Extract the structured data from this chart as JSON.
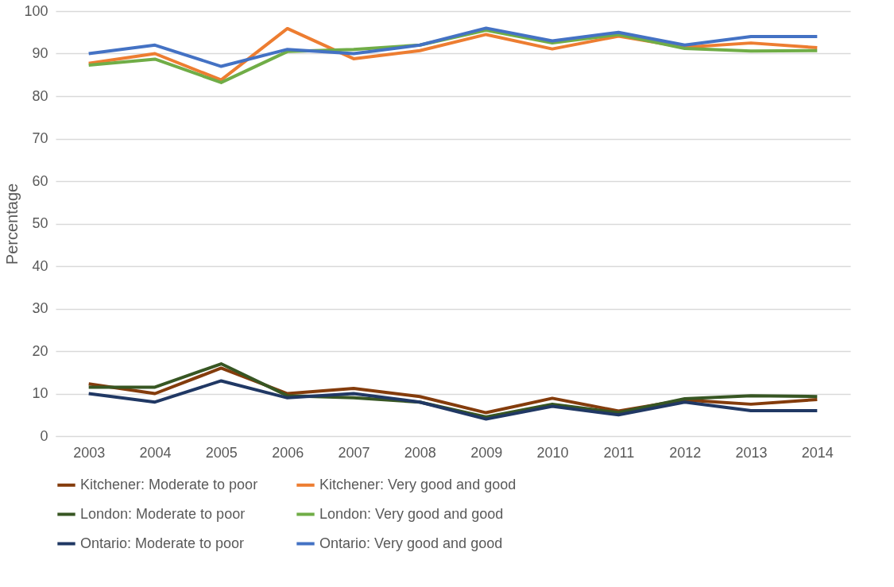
{
  "chart_data": {
    "type": "line",
    "ylabel": "Percentage",
    "categories": [
      "2003",
      "2004",
      "2005",
      "2006",
      "2007",
      "2008",
      "2009",
      "2010",
      "2011",
      "2012",
      "2013",
      "2014"
    ],
    "series": [
      {
        "name": "Kitchener: Moderate to poor",
        "color": "#843c0c",
        "values": [
          12.3,
          10,
          16,
          10,
          11.2,
          9.3,
          5.5,
          8.9,
          5.9,
          8.5,
          7.5,
          8.6
        ]
      },
      {
        "name": "Kitchener: Very good and good",
        "color": "#ed7d31",
        "values": [
          87.7,
          90,
          83.8,
          95.9,
          88.8,
          90.7,
          94.5,
          91.1,
          94.1,
          91.5,
          92.5,
          91.4
        ]
      },
      {
        "name": "London: Moderate to poor",
        "color": "#375623",
        "values": [
          11.5,
          11.5,
          17,
          9.5,
          9,
          8,
          4.5,
          7.5,
          5.5,
          8.8,
          9.5,
          9.3
        ]
      },
      {
        "name": "London: Very good and good",
        "color": "#70ad47",
        "values": [
          87.3,
          88.7,
          83.2,
          90.5,
          91,
          92,
          95.5,
          92.5,
          94.5,
          91.2,
          90.6,
          90.7
        ]
      },
      {
        "name": "Ontario: Moderate to poor",
        "color": "#203864",
        "values": [
          10,
          8,
          13,
          9,
          10,
          8,
          4,
          7,
          5,
          8,
          6,
          6
        ]
      },
      {
        "name": "Ontario: Very good and good",
        "color": "#4472c4",
        "values": [
          90,
          92,
          87,
          91,
          90,
          92,
          96,
          93,
          95,
          92,
          94,
          94
        ]
      }
    ],
    "ylim": [
      0,
      100
    ],
    "yticks": [
      0,
      10,
      20,
      30,
      40,
      50,
      60,
      70,
      80,
      90,
      100
    ],
    "grid": "y",
    "legend": "bottom",
    "marker": "none",
    "line_style": "solid"
  }
}
